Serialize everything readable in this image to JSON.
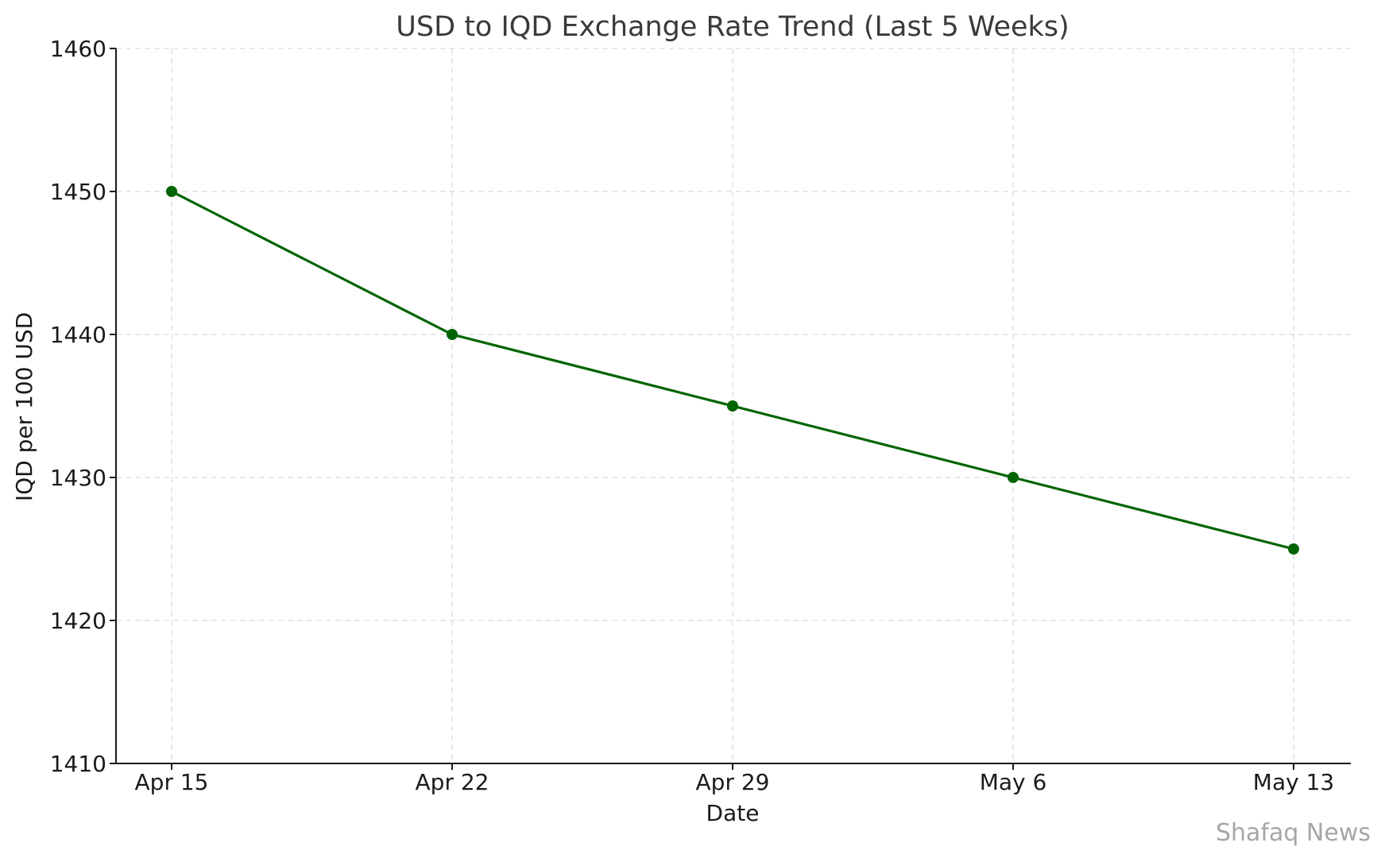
{
  "chart_data": {
    "type": "line",
    "title": "USD to IQD Exchange Rate Trend (Last 5 Weeks)",
    "xlabel": "Date",
    "ylabel": "IQD per 100 USD",
    "categories": [
      "Apr 15",
      "Apr 22",
      "Apr 29",
      "May 6",
      "May 13"
    ],
    "series": [
      {
        "values": [
          1450,
          1440,
          1435,
          1430,
          1425
        ]
      }
    ],
    "ylim": [
      1410,
      1460
    ],
    "yticks": [
      1410,
      1420,
      1430,
      1440,
      1450,
      1460
    ],
    "grid": true,
    "line_color": "#006400",
    "marker": "circle"
  },
  "watermark": "Shafaq News"
}
